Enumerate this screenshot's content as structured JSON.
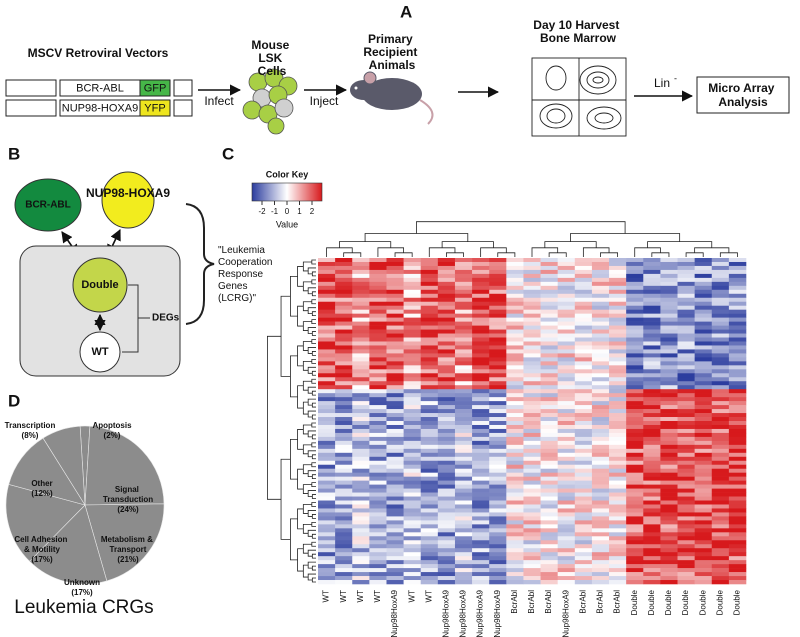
{
  "panel_a": {
    "letter": "A",
    "vectors_title": "MSCV Retroviral Vectors",
    "vector_1": {
      "gene": "BCR-ABL",
      "reporter": "GFP"
    },
    "vector_2": {
      "gene": "NUP98-HOXA9",
      "reporter": "YFP"
    },
    "step_infect": "Infect",
    "cells_title": "Mouse LSK Cells",
    "step_inject": "Inject",
    "animals_title": "Primary Recipient Animals",
    "harvest_title": "Day 10 Harvest Bone Marrow",
    "lin": "Lin",
    "lin_sup": "-",
    "analysis": "Micro Array Analysis"
  },
  "panel_b": {
    "letter": "B",
    "bcr_abl": "BCR-ABL",
    "nup98": "NUP98-HOXA9",
    "double": "Double",
    "wt": "WT",
    "degs": "DEGs",
    "lcrg": "\"Leukemia Cooperation Response Genes (LCRG)\""
  },
  "panel_c": {
    "letter": "C",
    "color_key": {
      "title": "Color Key",
      "label": "Value",
      "lim": [
        -2.8,
        2.8
      ],
      "ticks": [
        -2,
        -1,
        0,
        1,
        2
      ]
    },
    "columns": [
      "WT",
      "WT",
      "WT",
      "WT",
      "Nup98HoxA9",
      "WT",
      "WT",
      "Nup98HoxA9",
      "Nup98HoxA9",
      "Nup98HoxA9",
      "Nup98HoxA9",
      "BcrAbl",
      "BcrAbl",
      "BcrAbl",
      "Nup98HoxA9",
      "BcrAbl",
      "BcrAbl",
      "BcrAbl",
      "Double",
      "Double",
      "Double",
      "Double",
      "Double",
      "Double",
      "Double"
    ]
  },
  "panel_d": {
    "letter": "D",
    "title": "Leukemia CRGs",
    "type": "pie",
    "color": "#8c8c8c",
    "categories": [
      "Apoptosis",
      "Signal Transduction",
      "Metabolism & Transport",
      "Unknown",
      "Cell Adhesion & Motility",
      "Other",
      "Transcription"
    ],
    "values": [
      2,
      24,
      21,
      17,
      17,
      12,
      8
    ],
    "value_labels": [
      "(2%)",
      "(24%)",
      "(21%)",
      "(17%)",
      "(17%)",
      "(12%)",
      "(8%)"
    ]
  }
}
